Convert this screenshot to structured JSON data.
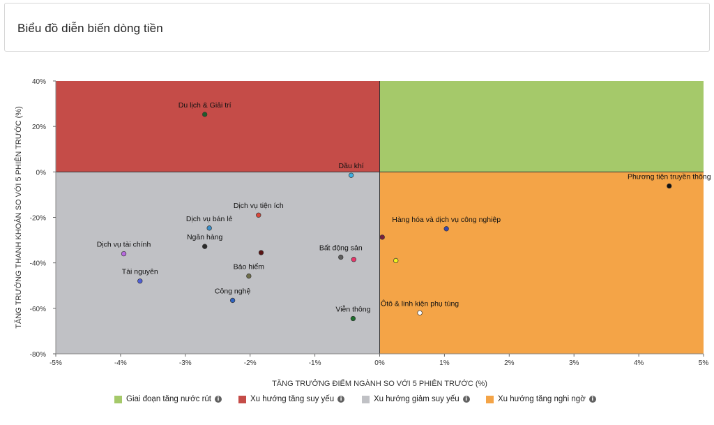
{
  "header": {
    "title": "Biểu đồ diễn biến dòng tiền"
  },
  "chart_data": {
    "type": "scatter",
    "title": "Biểu đồ diễn biến dòng tiền",
    "xlabel": "TĂNG TRƯỞNG ĐIỂM NGÀNH SO VỚI 5 PHIÊN TRƯỚC (%)",
    "ylabel": "TĂNG TRƯỞNG THANH KHOẢN SO VỚI 5 PHIÊN TRƯỚC (%)",
    "xlim": [
      -5,
      5
    ],
    "ylim": [
      -80,
      40
    ],
    "xticks": [
      -5,
      -4,
      -3,
      -2,
      -1,
      0,
      1,
      2,
      3,
      4,
      5
    ],
    "yticks": [
      40,
      20,
      0,
      -20,
      -40,
      -60,
      -80
    ],
    "xtick_labels": [
      "-5%",
      "-4%",
      "-3%",
      "-2%",
      "-1%",
      "0%",
      "1%",
      "2%",
      "3%",
      "4%",
      "5%"
    ],
    "ytick_labels": [
      "40%",
      "20%",
      "0%",
      "-20%",
      "-40%",
      "-60%",
      "-80%"
    ],
    "quadrants": [
      {
        "name": "Giai đoạn tăng nước rút",
        "color": "#a5c96a",
        "x": [
          0,
          5
        ],
        "y": [
          0,
          40
        ]
      },
      {
        "name": "Xu hướng tăng suy yếu",
        "color": "#c54c48",
        "x": [
          -5,
          0
        ],
        "y": [
          0,
          40
        ]
      },
      {
        "name": "Xu hướng giảm suy yếu",
        "color": "#c0c1c5",
        "x": [
          -5,
          0
        ],
        "y": [
          -80,
          0
        ]
      },
      {
        "name": "Xu hướng tăng nghi ngờ",
        "color": "#f4a447",
        "x": [
          0,
          5
        ],
        "y": [
          -80,
          0
        ]
      }
    ],
    "points": [
      {
        "label": "Du lịch & Giải trí",
        "x": -2.7,
        "y": 25.3,
        "color": "#1f5c2a"
      },
      {
        "label": "Dầu khí",
        "x": -0.44,
        "y": -1.5,
        "color": "#3fb1e3"
      },
      {
        "label": "Phương tiện truyền thông",
        "x": 4.47,
        "y": -6.2,
        "color": "#111111"
      },
      {
        "label": "Dịch vụ tiện ích",
        "x": -1.87,
        "y": -19,
        "color": "#d9473b"
      },
      {
        "label": "Dịch vụ bán lẻ",
        "x": -2.63,
        "y": -24.7,
        "color": "#3a8fc9"
      },
      {
        "label": "Hàng hóa và dịch vụ công nghiệp",
        "x": 1.03,
        "y": -25,
        "color": "#3b47b0"
      },
      {
        "label": "",
        "x": 0.04,
        "y": -28.7,
        "color": "#7a1f3d"
      },
      {
        "label": "Ngân hàng",
        "x": -2.7,
        "y": -32.8,
        "color": "#2b2b2b"
      },
      {
        "label": "Dịch vụ tài chính",
        "x": -3.95,
        "y": -36,
        "color": "#b86be0"
      },
      {
        "label": "",
        "x": -1.83,
        "y": -35.5,
        "color": "#5a1414"
      },
      {
        "label": "Bất động sản",
        "x": -0.6,
        "y": -37.5,
        "color": "#5e5e5e"
      },
      {
        "label": "",
        "x": -0.4,
        "y": -38.5,
        "color": "#e8346a"
      },
      {
        "label": "",
        "x": 0.25,
        "y": -39,
        "color": "#f2f21f"
      },
      {
        "label": "Bảo hiểm",
        "x": -2.02,
        "y": -45.8,
        "color": "#6e6e4a"
      },
      {
        "label": "Tài nguyên",
        "x": -3.7,
        "y": -48,
        "color": "#4f5fd6"
      },
      {
        "label": "Công nghệ",
        "x": -2.27,
        "y": -56.5,
        "color": "#2f63c2"
      },
      {
        "label": "Viễn thông",
        "x": -0.41,
        "y": -64.5,
        "color": "#1e6e2d"
      },
      {
        "label": "Ôtô & linh kiện phụ tùng",
        "x": 0.62,
        "y": -62,
        "color": "#ffffff"
      }
    ],
    "legend_position": "bottom"
  },
  "legend": {
    "items": [
      {
        "label": "Giai đoạn tăng nước rút",
        "color": "#a5c96a"
      },
      {
        "label": "Xu hướng tăng suy yếu",
        "color": "#c54c48"
      },
      {
        "label": "Xu hướng giảm suy yếu",
        "color": "#c0c1c5"
      },
      {
        "label": "Xu hướng tăng nghi ngờ",
        "color": "#f4a447"
      }
    ],
    "info_icon": "info-icon"
  }
}
